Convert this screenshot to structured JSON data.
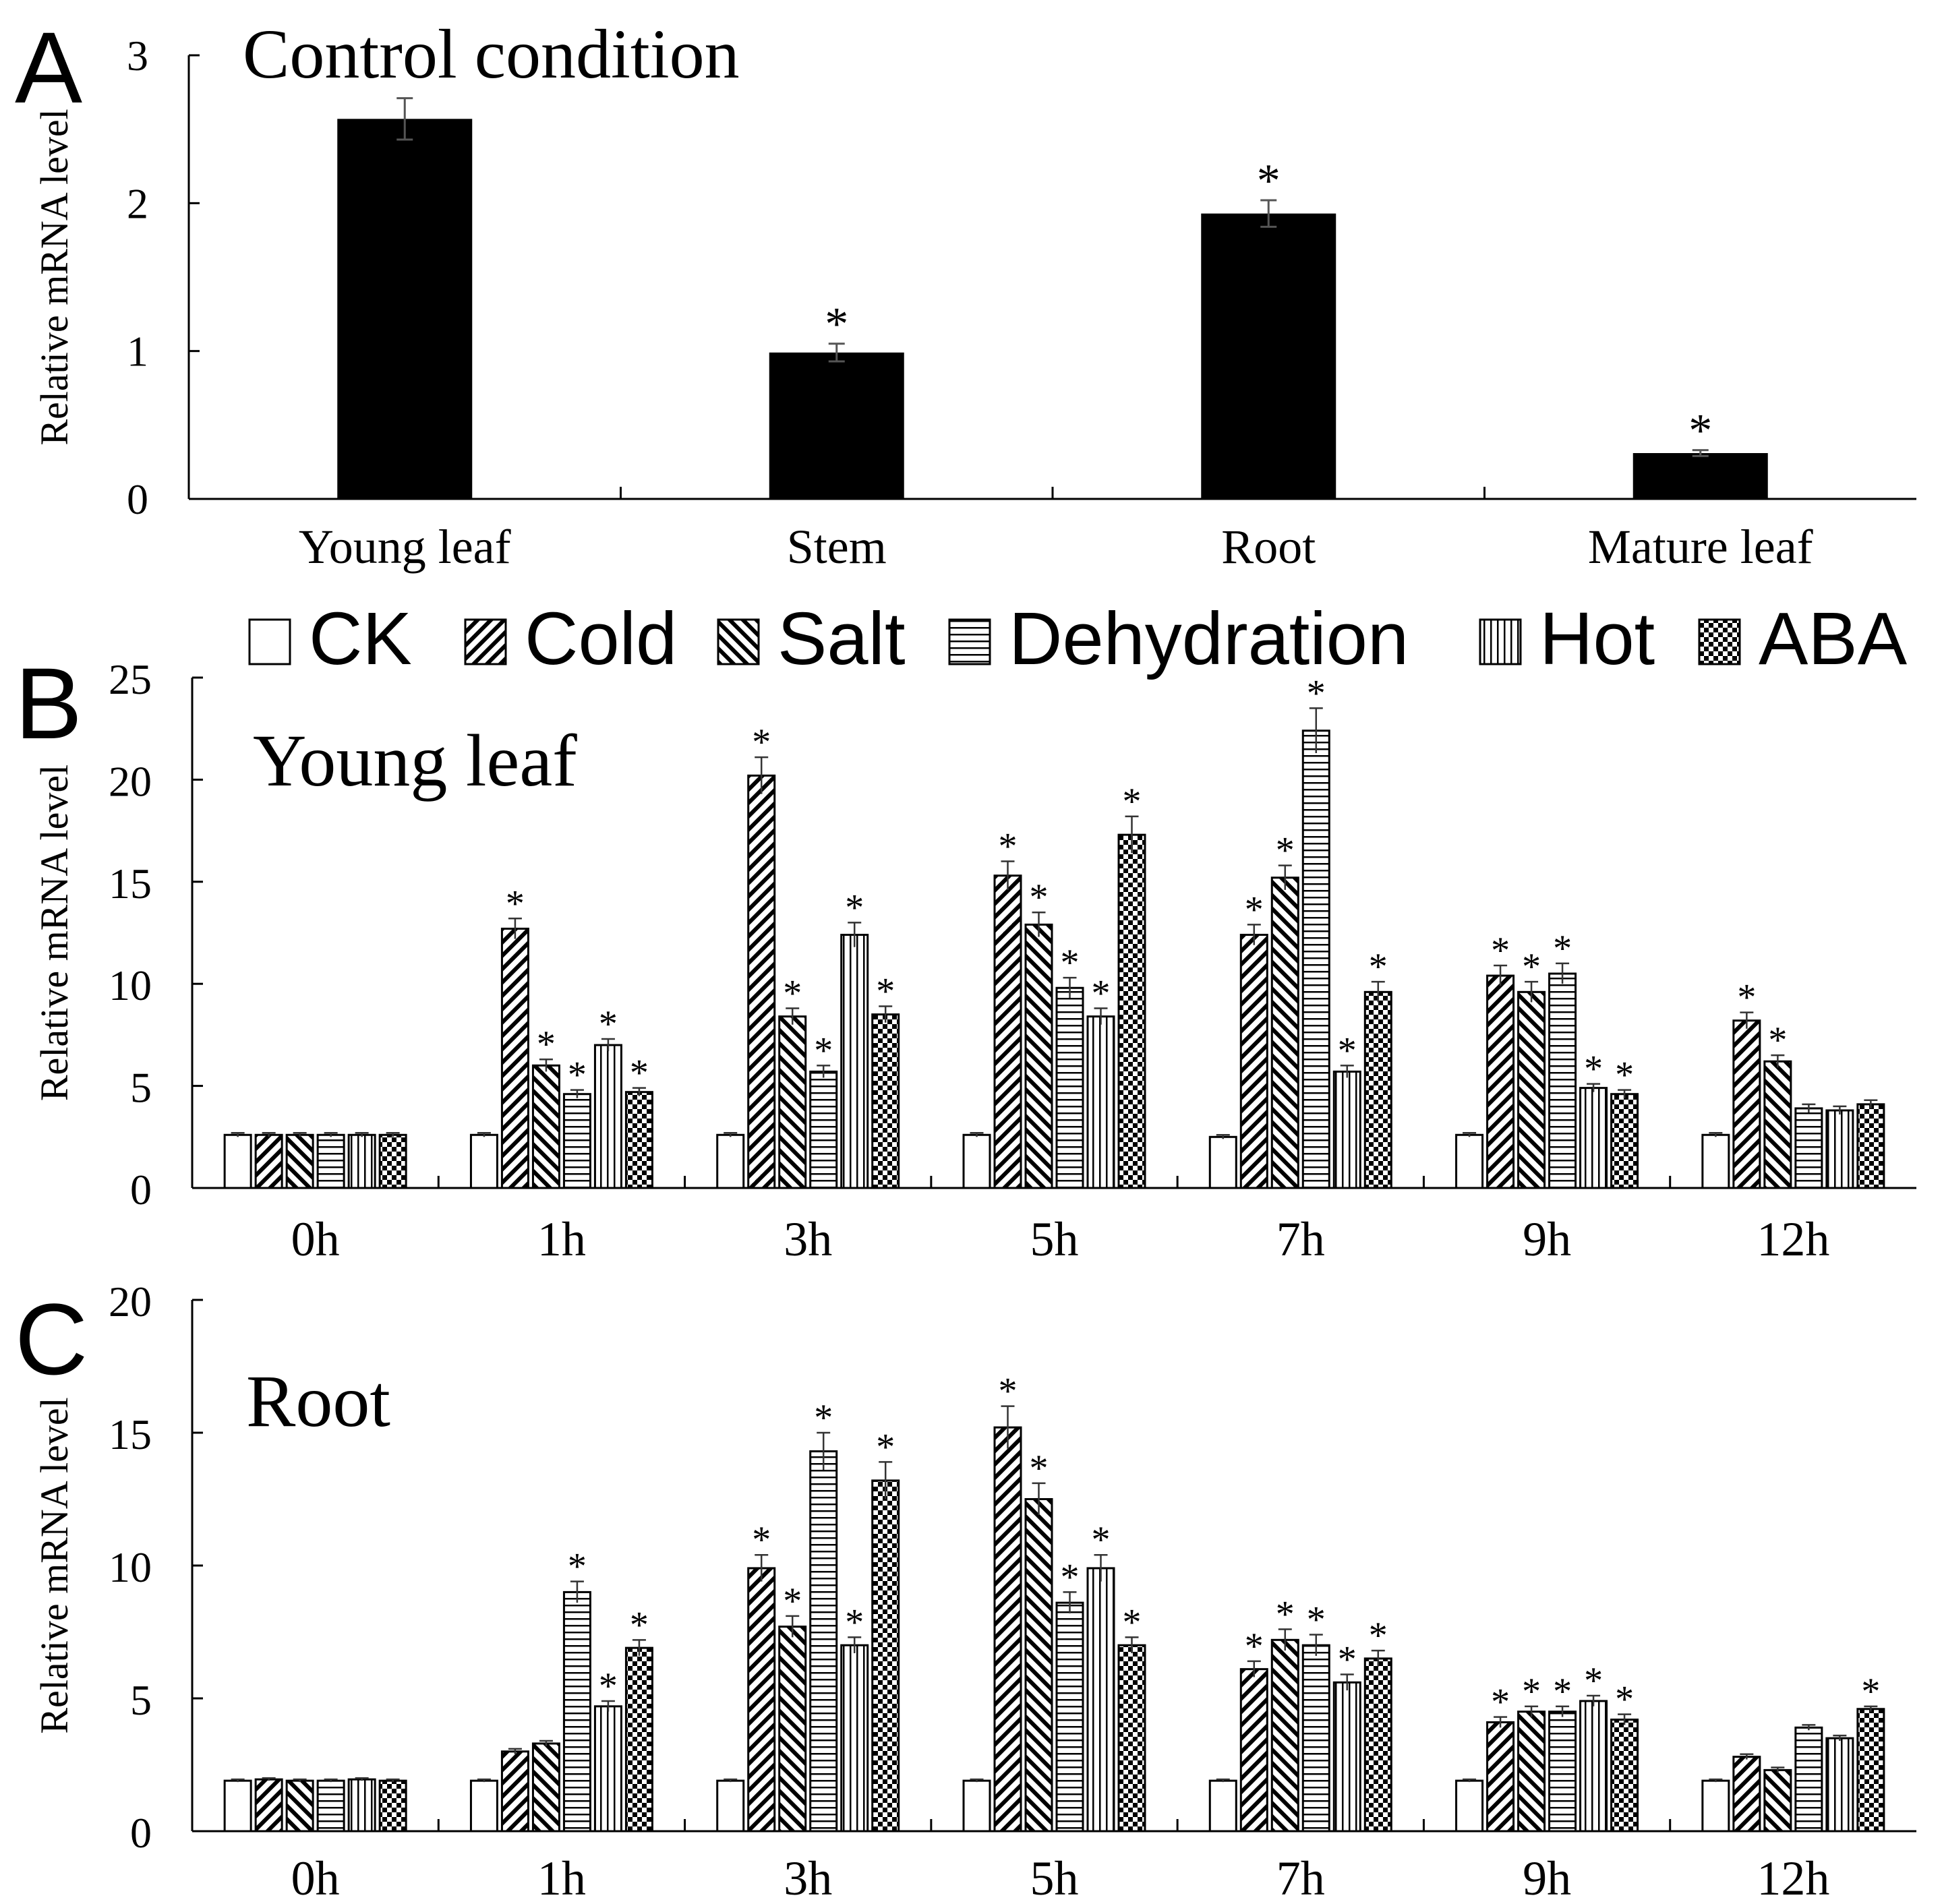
{
  "chart_data": [
    {
      "panel": "A",
      "type": "bar",
      "title": "Control condition",
      "ylabel": "Relative mRNA level",
      "ylim": [
        0,
        3
      ],
      "yticks": [
        "0",
        "1",
        "2",
        "3"
      ],
      "categories": [
        "Young leaf",
        "Stem",
        "Root",
        "Mature leaf"
      ],
      "values": [
        2.57,
        0.99,
        1.93,
        0.31
      ],
      "errors": [
        0.14,
        0.06,
        0.09,
        0.02
      ],
      "significant": [
        false,
        true,
        true,
        true
      ],
      "colors": {
        "bar": "#000000"
      }
    },
    {
      "panel": "B",
      "type": "bar",
      "title": "Young leaf",
      "ylabel": "Relative mRNA level",
      "ylim": [
        0,
        25
      ],
      "yticks": [
        "0",
        "5",
        "10",
        "15",
        "20",
        "25"
      ],
      "categories": [
        "0h",
        "1h",
        "3h",
        "5h",
        "7h",
        "9h",
        "12h"
      ],
      "series": [
        {
          "name": "CK",
          "pattern": "blank",
          "values": [
            2.6,
            2.6,
            2.6,
            2.6,
            2.5,
            2.6,
            2.6
          ],
          "errors": [
            0.1,
            0.1,
            0.1,
            0.1,
            0.1,
            0.1,
            0.1
          ],
          "significant": [
            false,
            false,
            false,
            false,
            false,
            false,
            false
          ]
        },
        {
          "name": "Cold",
          "pattern": "diag-up",
          "values": [
            2.6,
            12.7,
            20.2,
            15.3,
            12.4,
            10.4,
            8.2
          ],
          "errors": [
            0.1,
            0.5,
            0.9,
            0.7,
            0.5,
            0.5,
            0.4
          ],
          "significant": [
            false,
            true,
            true,
            true,
            true,
            true,
            true
          ]
        },
        {
          "name": "Salt",
          "pattern": "diag-down",
          "values": [
            2.6,
            6.0,
            8.4,
            12.9,
            15.2,
            9.6,
            6.2
          ],
          "errors": [
            0.1,
            0.3,
            0.4,
            0.6,
            0.6,
            0.5,
            0.3
          ],
          "significant": [
            false,
            true,
            true,
            true,
            true,
            true,
            true
          ]
        },
        {
          "name": "Dehydration",
          "pattern": "horizontal",
          "values": [
            2.6,
            4.6,
            5.7,
            9.8,
            22.4,
            10.5,
            3.9
          ],
          "errors": [
            0.1,
            0.2,
            0.3,
            0.5,
            1.1,
            0.5,
            0.2
          ],
          "significant": [
            false,
            true,
            true,
            true,
            true,
            true,
            false
          ]
        },
        {
          "name": "Hot",
          "pattern": "vertical",
          "values": [
            2.6,
            7.0,
            12.4,
            8.4,
            5.7,
            4.9,
            3.8
          ],
          "errors": [
            0.1,
            0.3,
            0.6,
            0.4,
            0.3,
            0.2,
            0.2
          ],
          "significant": [
            false,
            true,
            true,
            true,
            true,
            true,
            false
          ]
        },
        {
          "name": "ABA",
          "pattern": "checker",
          "values": [
            2.6,
            4.7,
            8.5,
            17.3,
            9.6,
            4.6,
            4.1
          ],
          "errors": [
            0.1,
            0.2,
            0.4,
            0.9,
            0.5,
            0.2,
            0.2
          ],
          "significant": [
            false,
            true,
            true,
            true,
            true,
            true,
            false
          ]
        }
      ]
    },
    {
      "panel": "C",
      "type": "bar",
      "title": "Root",
      "ylabel": "Relative mRNA level",
      "ylim": [
        0,
        20
      ],
      "yticks": [
        "0",
        "5",
        "10",
        "15",
        "20"
      ],
      "categories": [
        "0h",
        "1h",
        "3h",
        "5h",
        "7h",
        "9h",
        "12h"
      ],
      "series": [
        {
          "name": "CK",
          "pattern": "blank",
          "values": [
            1.9,
            1.9,
            1.9,
            1.9,
            1.9,
            1.9,
            1.9
          ],
          "errors": [
            0.05,
            0.05,
            0.05,
            0.05,
            0.05,
            0.05,
            0.05
          ],
          "significant": [
            false,
            false,
            false,
            false,
            false,
            false,
            false
          ]
        },
        {
          "name": "Cold",
          "pattern": "diag-up",
          "values": [
            1.95,
            3.0,
            9.9,
            15.2,
            6.1,
            4.1,
            2.8
          ],
          "errors": [
            0.05,
            0.1,
            0.5,
            0.8,
            0.3,
            0.2,
            0.1
          ],
          "significant": [
            false,
            false,
            true,
            true,
            true,
            true,
            false
          ]
        },
        {
          "name": "Salt",
          "pattern": "diag-down",
          "values": [
            1.9,
            3.3,
            7.7,
            12.5,
            7.2,
            4.5,
            2.3
          ],
          "errors": [
            0.05,
            0.1,
            0.4,
            0.6,
            0.4,
            0.2,
            0.1
          ],
          "significant": [
            false,
            false,
            true,
            true,
            true,
            true,
            false
          ]
        },
        {
          "name": "Dehydration",
          "pattern": "horizontal",
          "values": [
            1.9,
            9.0,
            14.3,
            8.6,
            7.0,
            4.5,
            3.9
          ],
          "errors": [
            0.05,
            0.4,
            0.7,
            0.4,
            0.4,
            0.2,
            0.1
          ],
          "significant": [
            false,
            true,
            true,
            true,
            true,
            true,
            false
          ]
        },
        {
          "name": "Hot",
          "pattern": "vertical",
          "values": [
            1.95,
            4.7,
            7.0,
            9.9,
            5.6,
            4.9,
            3.5
          ],
          "errors": [
            0.05,
            0.2,
            0.3,
            0.5,
            0.3,
            0.2,
            0.1
          ],
          "significant": [
            false,
            true,
            true,
            true,
            true,
            true,
            false
          ]
        },
        {
          "name": "ABA",
          "pattern": "checker",
          "values": [
            1.9,
            6.9,
            13.2,
            7.0,
            6.5,
            4.2,
            4.6
          ],
          "errors": [
            0.05,
            0.3,
            0.7,
            0.3,
            0.3,
            0.2,
            0.1
          ],
          "significant": [
            false,
            true,
            true,
            true,
            true,
            true,
            true
          ]
        }
      ]
    }
  ],
  "panel_labels": [
    "A",
    "B",
    "C"
  ],
  "significance_marker": "*",
  "legend": {
    "placement": "top",
    "items": [
      {
        "name": "CK",
        "pattern": "blank"
      },
      {
        "name": "Cold",
        "pattern": "diag-up"
      },
      {
        "name": "Salt",
        "pattern": "diag-down"
      },
      {
        "name": "Dehydration",
        "pattern": "horizontal"
      },
      {
        "name": "Hot",
        "pattern": "vertical"
      },
      {
        "name": "ABA",
        "pattern": "checker"
      }
    ]
  }
}
